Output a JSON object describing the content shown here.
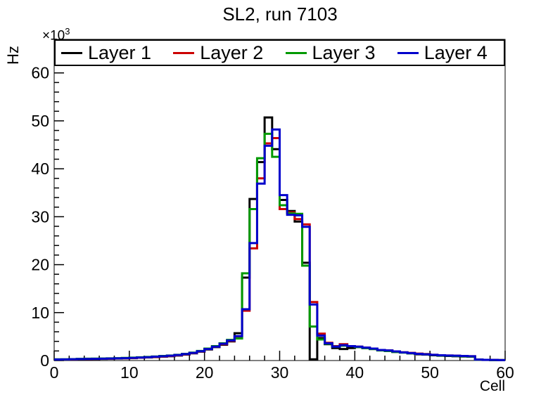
{
  "title": "SL2, run 7103",
  "axes": {
    "x_label": "Cell",
    "y_label": "Hz",
    "y_scale_base": "×10",
    "y_scale_exponent": "3",
    "x_ticks": [
      0,
      10,
      20,
      30,
      40,
      50,
      60
    ],
    "y_ticks": [
      0,
      10,
      20,
      30,
      40,
      50,
      60
    ],
    "x_minor_step": 2,
    "y_minor_step": 2,
    "xlim": [
      0,
      60
    ],
    "ylim": [
      0,
      67
    ]
  },
  "legend": {
    "entries": [
      {
        "label": "Layer 1",
        "color": "#000000"
      },
      {
        "label": "Layer 2",
        "color": "#cc0000"
      },
      {
        "label": "Layer 3",
        "color": "#009900"
      },
      {
        "label": "Layer 4",
        "color": "#0000cc"
      }
    ]
  },
  "chart_data": {
    "type": "step-histogram",
    "title": "SL2, run 7103",
    "xlabel": "Cell",
    "ylabel": "Hz",
    "units": "×10³ Hz",
    "x_range": [
      0,
      60
    ],
    "bin_width": 1,
    "ylim": [
      0,
      67
    ],
    "grid": false,
    "legend_position": "top-inside-full-width",
    "series": [
      {
        "name": "Layer 1",
        "color": "#000000",
        "values": [
          0.2,
          0.2,
          0.25,
          0.28,
          0.3,
          0.32,
          0.35,
          0.38,
          0.42,
          0.46,
          0.5,
          0.58,
          0.65,
          0.72,
          0.8,
          0.9,
          1.05,
          1.25,
          1.5,
          1.85,
          2.3,
          2.8,
          3.3,
          4.0,
          5.7,
          17.3,
          33.7,
          41.4,
          50.7,
          44.1,
          33.5,
          31.2,
          29.0,
          20.4,
          0.25,
          4.7,
          3.4,
          2.6,
          2.4,
          2.6,
          2.8,
          2.6,
          2.4,
          2.2,
          2.0,
          1.8,
          1.7,
          1.5,
          1.3,
          1.25,
          1.1,
          1.0,
          0.95,
          0.9,
          0.85,
          0.8,
          0.15,
          0.12,
          0.1,
          0.1
        ]
      },
      {
        "name": "Layer 2",
        "color": "#cc0000",
        "values": [
          0.22,
          0.22,
          0.26,
          0.3,
          0.32,
          0.34,
          0.37,
          0.4,
          0.44,
          0.48,
          0.52,
          0.6,
          0.68,
          0.75,
          0.85,
          0.95,
          1.1,
          1.3,
          1.55,
          1.9,
          2.4,
          2.9,
          3.4,
          4.1,
          5.0,
          10.4,
          23.4,
          38.0,
          45.3,
          46.4,
          31.6,
          30.9,
          29.5,
          28.4,
          12.2,
          5.6,
          3.7,
          3.0,
          3.4,
          3.0,
          2.9,
          2.7,
          2.5,
          2.2,
          2.1,
          1.9,
          1.7,
          1.6,
          1.45,
          1.35,
          1.2,
          1.1,
          1.05,
          1.0,
          0.95,
          0.9,
          0.2,
          0.15,
          0.12,
          0.1
        ]
      },
      {
        "name": "Layer 3",
        "color": "#009900",
        "values": [
          0.25,
          0.25,
          0.3,
          0.35,
          0.38,
          0.4,
          0.42,
          0.45,
          0.5,
          0.55,
          0.6,
          0.68,
          0.75,
          0.85,
          0.95,
          1.05,
          1.2,
          1.4,
          1.65,
          2.0,
          2.5,
          3.0,
          3.6,
          4.3,
          4.6,
          18.2,
          31.6,
          42.2,
          47.3,
          42.5,
          32.4,
          30.7,
          30.6,
          19.8,
          7.1,
          4.4,
          3.5,
          2.9,
          3.1,
          3.0,
          2.8,
          2.6,
          2.4,
          2.1,
          2.0,
          1.8,
          1.65,
          1.5,
          1.4,
          1.3,
          1.15,
          1.05,
          1.0,
          0.95,
          0.9,
          0.85,
          0.18,
          0.14,
          0.1,
          0.1
        ]
      },
      {
        "name": "Layer 4",
        "color": "#0000cc",
        "values": [
          0.22,
          0.23,
          0.27,
          0.31,
          0.33,
          0.35,
          0.38,
          0.42,
          0.46,
          0.5,
          0.55,
          0.62,
          0.7,
          0.8,
          0.9,
          1.0,
          1.15,
          1.35,
          1.6,
          1.95,
          2.4,
          2.9,
          3.5,
          4.2,
          5.1,
          10.7,
          24.5,
          36.9,
          44.8,
          48.2,
          34.5,
          30.4,
          30.3,
          27.9,
          11.7,
          5.2,
          3.6,
          2.9,
          3.2,
          3.0,
          2.9,
          2.7,
          2.5,
          2.2,
          2.1,
          1.9,
          1.7,
          1.55,
          1.4,
          1.3,
          1.2,
          1.1,
          1.05,
          1.0,
          0.95,
          0.9,
          0.2,
          0.15,
          0.12,
          0.1
        ]
      }
    ]
  }
}
